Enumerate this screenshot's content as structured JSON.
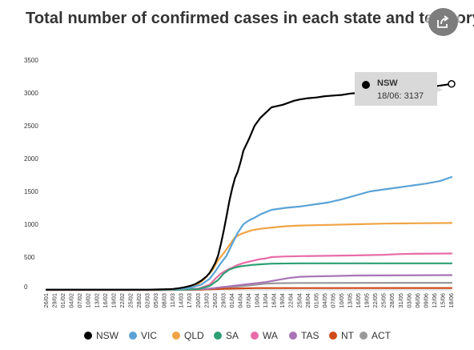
{
  "title": "Total number of confirmed cases in each state and territory",
  "share_icon": "share-icon",
  "tooltip": {
    "series": "NSW",
    "text": "18/06: 3137"
  },
  "chart_data": {
    "type": "line",
    "title": "Total number of confirmed cases in each state and territory",
    "xlabel": "",
    "ylabel": "",
    "ylim": [
      0,
      3500
    ],
    "yticks": [
      0,
      500,
      1000,
      1500,
      2000,
      2500,
      3000,
      3500
    ],
    "xticks": [
      "26/01",
      "29/01",
      "01/02",
      "04/02",
      "07/02",
      "10/02",
      "13/02",
      "16/02",
      "19/02",
      "22/02",
      "25/02",
      "28/02",
      "02/03",
      "05/03",
      "08/03",
      "11/03",
      "14/03",
      "17/03",
      "20/03",
      "23/03",
      "26/03",
      "29/03",
      "01/04",
      "04/04",
      "07/04",
      "10/04",
      "13/04",
      "16/04",
      "19/04",
      "22/04",
      "25/04",
      "28/04",
      "01/05",
      "04/05",
      "07/05",
      "10/05",
      "13/05",
      "16/05",
      "19/05",
      "22/05",
      "25/05",
      "28/05",
      "31/05",
      "03/06",
      "06/06",
      "09/06",
      "12/06",
      "15/06",
      "18/06"
    ],
    "grid": false,
    "legend_position": "bottom",
    "series": [
      {
        "name": "NSW",
        "color": "#000000",
        "x": [
          0,
          36,
          39,
          42,
          45,
          47,
          49,
          51,
          53,
          55,
          57,
          58,
          59,
          60,
          61,
          62,
          63,
          64,
          65,
          66,
          67,
          68,
          69,
          70,
          72,
          74,
          76,
          78,
          80,
          82,
          84,
          86,
          88,
          90,
          93,
          96,
          99,
          102,
          105,
          108,
          111,
          114,
          117,
          120,
          126,
          132,
          138,
          144
        ],
        "y": [
          4,
          4,
          6,
          10,
          15,
          25,
          40,
          60,
          90,
          140,
          210,
          260,
          330,
          410,
          520,
          700,
          900,
          1120,
          1350,
          1540,
          1700,
          1800,
          1950,
          2120,
          2300,
          2500,
          2620,
          2700,
          2780,
          2800,
          2820,
          2850,
          2880,
          2900,
          2920,
          2930,
          2950,
          2960,
          2970,
          2990,
          3000,
          3010,
          3020,
          3040,
          3060,
          3080,
          3100,
          3137
        ]
      },
      {
        "name": "VIC",
        "color": "#5ba3d6",
        "x": [
          0,
          36,
          42,
          47,
          51,
          55,
          58,
          60,
          62,
          64,
          66,
          68,
          70,
          72,
          74,
          76,
          80,
          85,
          90,
          95,
          100,
          105,
          110,
          115,
          120,
          125,
          130,
          135,
          140,
          144
        ],
        "y": [
          4,
          4,
          8,
          15,
          30,
          80,
          170,
          280,
          410,
          520,
          700,
          870,
          1000,
          1060,
          1100,
          1150,
          1220,
          1250,
          1270,
          1300,
          1330,
          1380,
          1440,
          1500,
          1530,
          1560,
          1590,
          1620,
          1660,
          1720
        ]
      },
      {
        "name": "QLD",
        "color": "#f0a445",
        "x": [
          0,
          38,
          44,
          49,
          53,
          56,
          59,
          61,
          63,
          65,
          67,
          69,
          71,
          73,
          76,
          80,
          85,
          90,
          100,
          110,
          120,
          130,
          144
        ],
        "y": [
          3,
          3,
          8,
          20,
          60,
          160,
          300,
          450,
          560,
          680,
          800,
          850,
          880,
          910,
          930,
          950,
          970,
          980,
          990,
          1000,
          1010,
          1015,
          1020
        ]
      },
      {
        "name": "SA",
        "color": "#2ca073",
        "x": [
          0,
          40,
          48,
          54,
          58,
          61,
          63,
          65,
          67,
          69,
          71,
          73,
          76,
          80,
          90,
          144
        ],
        "y": [
          1,
          1,
          4,
          15,
          60,
          150,
          250,
          310,
          340,
          360,
          370,
          380,
          390,
          400,
          405,
          405
        ]
      },
      {
        "name": "WA",
        "color": "#e86ca7",
        "x": [
          0,
          40,
          48,
          54,
          58,
          60,
          62,
          64,
          66,
          68,
          70,
          72,
          74,
          76,
          78,
          80,
          85,
          90,
          100,
          110,
          120,
          125,
          130,
          144
        ],
        "y": [
          2,
          2,
          5,
          20,
          80,
          170,
          250,
          300,
          340,
          380,
          410,
          430,
          450,
          470,
          480,
          500,
          510,
          515,
          520,
          525,
          535,
          545,
          550,
          555
        ]
      },
      {
        "name": "TAS",
        "color": "#a874b5",
        "x": [
          0,
          44,
          50,
          54,
          58,
          62,
          66,
          70,
          74,
          78,
          82,
          86,
          90,
          94,
          98,
          102,
          110,
          144
        ],
        "y": [
          0,
          0,
          5,
          10,
          20,
          40,
          60,
          80,
          100,
          120,
          150,
          180,
          200,
          205,
          208,
          212,
          220,
          226
        ]
      },
      {
        "name": "NT",
        "color": "#cf4a1a",
        "x": [
          0,
          44,
          55,
          65,
          75,
          144
        ],
        "y": [
          0,
          0,
          5,
          20,
          28,
          29
        ]
      },
      {
        "name": "ACT",
        "color": "#999999",
        "x": [
          0,
          44,
          52,
          58,
          62,
          66,
          70,
          74,
          78,
          82,
          90,
          144
        ],
        "y": [
          0,
          0,
          3,
          10,
          25,
          45,
          60,
          78,
          95,
          103,
          106,
          108
        ]
      }
    ]
  }
}
